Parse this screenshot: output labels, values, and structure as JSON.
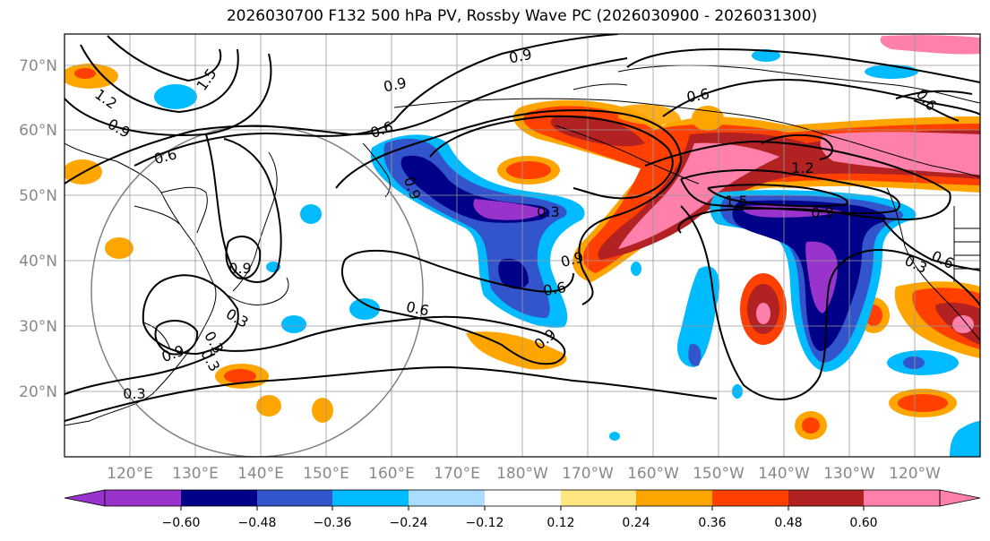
{
  "title": "2026030700 F132 500 hPa PV, Rossby Wave PC (2026030900 - 2026031300)",
  "lat_labels": [
    "70°N",
    "60°N",
    "50°N",
    "40°N",
    "30°N",
    "20°N"
  ],
  "lon_labels": [
    "120°E",
    "130°E",
    "140°E",
    "150°E",
    "160°E",
    "170°E",
    "180°W",
    "170°W",
    "160°W",
    "150°W",
    "140°W",
    "130°W",
    "120°W"
  ],
  "colorbar": {
    "ticks": [
      "−0.60",
      "−0.48",
      "−0.36",
      "−0.24",
      "−0.12",
      "0.12",
      "0.24",
      "0.36",
      "0.48",
      "0.60"
    ],
    "colors": [
      "#9933cc",
      "#000088",
      "#3355cc",
      "#00bbff",
      "#aaddff",
      "#ffffff",
      "#ffe680",
      "#ffa500",
      "#ff4000",
      "#b22222",
      "#ff80aa"
    ]
  },
  "contour_labels": [
    "1.5",
    "1.2",
    "0.9",
    "0.6",
    "0.3"
  ],
  "placed_contour_labels": [
    "0.9",
    "0.9",
    "0.6",
    "1.5",
    "1.2",
    "0.9",
    "0.6",
    "0.6",
    "0.9",
    "1.2",
    "1.5",
    "0.9",
    "0.3",
    "0.6",
    "0.3",
    "0.9",
    "0.9",
    "0.6",
    "0.3",
    "0.9",
    "0.3",
    "0.3",
    "0.6",
    "0.3",
    "0.6",
    "0.9"
  ]
}
